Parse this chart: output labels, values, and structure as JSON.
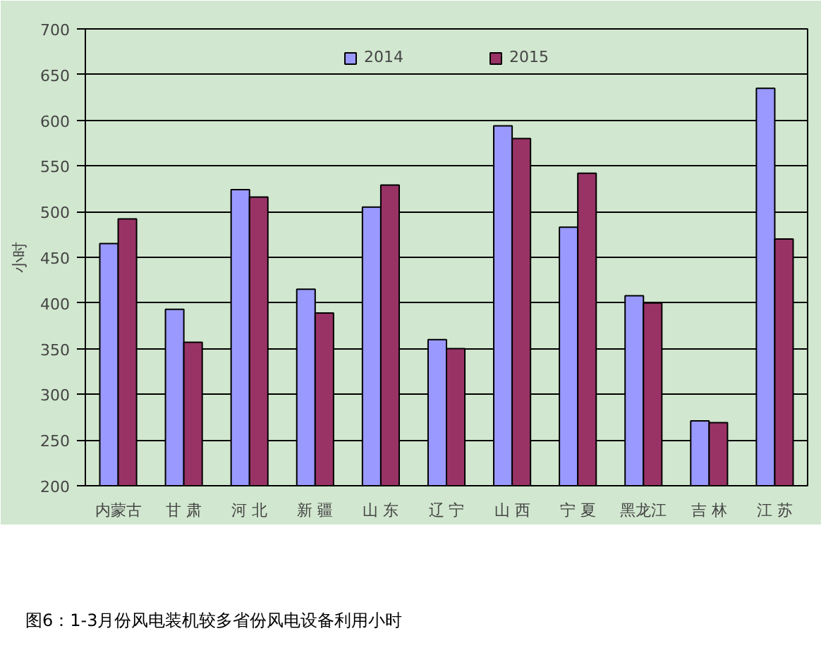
{
  "chart_data": {
    "type": "bar",
    "categories": [
      "内蒙古",
      "甘 肃",
      "河 北",
      "新 疆",
      "山 东",
      "辽 宁",
      "山 西",
      "宁 夏",
      "黑龙江",
      "吉 林",
      "江 苏"
    ],
    "series": [
      {
        "name": "2014",
        "color": "#9999ff",
        "values": [
          465,
          393,
          524,
          415,
          505,
          360,
          594,
          483,
          408,
          271,
          635
        ]
      },
      {
        "name": "2015",
        "color": "#993366",
        "values": [
          492,
          357,
          516,
          389,
          529,
          350,
          580,
          542,
          400,
          269,
          470
        ]
      }
    ],
    "ylabel": "小时",
    "ylim": [
      200,
      700
    ],
    "yticks": [
      200,
      250,
      300,
      350,
      400,
      450,
      500,
      550,
      600,
      650,
      700
    ],
    "grid": "y",
    "legend": "top",
    "annotations": [
      "图6：1-3月份风电装机较多省份风电设备利用小时"
    ]
  }
}
